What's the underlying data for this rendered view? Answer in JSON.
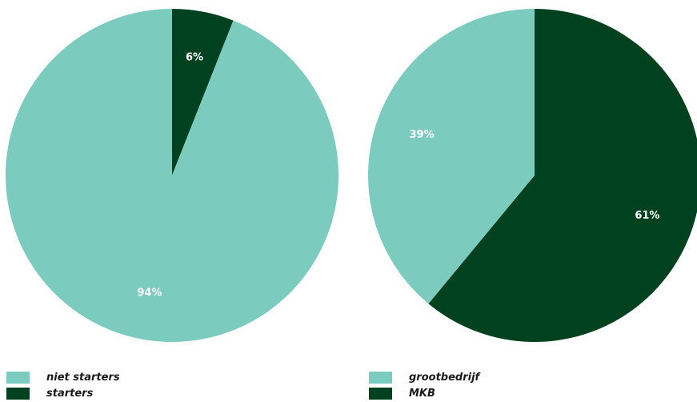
{
  "colors": {
    "light": "#7ccbbf",
    "dark": "#00411f"
  },
  "chart_data": [
    {
      "type": "pie",
      "categories": [
        "niet starters",
        "starters"
      ],
      "values": [
        94,
        6
      ],
      "labels": [
        "94%",
        "6%"
      ],
      "colors": [
        "#7ccbbf",
        "#00411f"
      ],
      "legend_position": "bottom-left",
      "title": ""
    },
    {
      "type": "pie",
      "categories": [
        "grootbedrijf",
        "MKB"
      ],
      "values": [
        39,
        61
      ],
      "labels": [
        "39%",
        "61%"
      ],
      "colors": [
        "#7ccbbf",
        "#00411f"
      ],
      "legend_position": "bottom-left",
      "title": ""
    }
  ],
  "legends": [
    {
      "items": [
        {
          "label": "niet starters",
          "color": "#7ccbbf"
        },
        {
          "label": "starters",
          "color": "#00411f"
        }
      ]
    },
    {
      "items": [
        {
          "label": "grootbedrijf",
          "color": "#7ccbbf"
        },
        {
          "label": "MKB",
          "color": "#00411f"
        }
      ]
    }
  ]
}
